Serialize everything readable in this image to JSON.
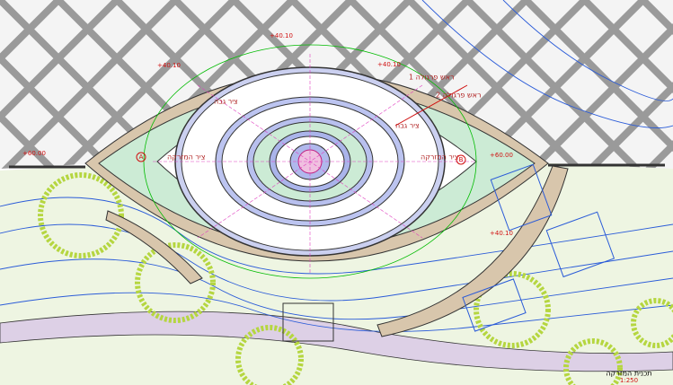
{
  "plan": {
    "title": "תכנית המזרקה",
    "scale": "1:250",
    "axis_labels": [
      "ציר המזרקה",
      "ציר המזרקה"
    ],
    "axis_marks": [
      "A",
      "B"
    ],
    "secondary_axes": [
      "ציר גבה",
      "ציר גבה"
    ],
    "pergola_labels": [
      "ראש פרגולה 1",
      "ראש פרגולה 2"
    ],
    "levels": [
      "+60.00",
      "+60.00",
      "+40.10",
      "+40.10",
      "+40.10",
      "+40.10"
    ]
  }
}
